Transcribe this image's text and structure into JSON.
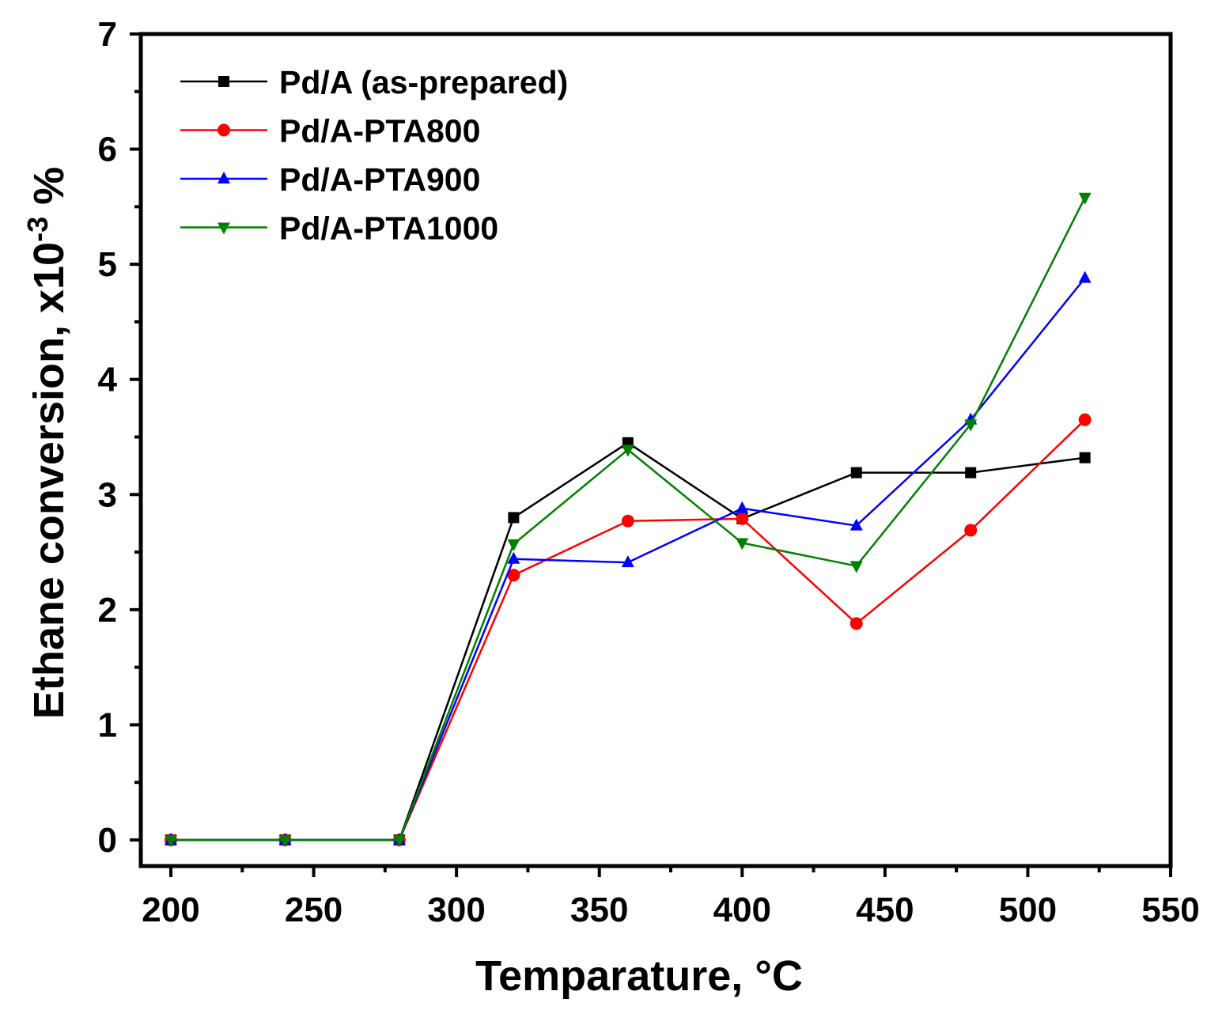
{
  "chart_data": {
    "type": "line",
    "title": "",
    "xlabel": "Temparature, °C",
    "ylabel_main": "Ethane conversion, x10",
    "ylabel_sup": "-3",
    "ylabel_unit": " %",
    "xlim": [
      190,
      550
    ],
    "ylim": [
      -0.23,
      7
    ],
    "xticks": [
      200,
      250,
      300,
      350,
      400,
      450,
      500,
      550
    ],
    "yticks": [
      0,
      1,
      2,
      3,
      4,
      5,
      6,
      7
    ],
    "grid": false,
    "legend_position": "top-left",
    "x": [
      200,
      240,
      280,
      320,
      360,
      400,
      440,
      480,
      520
    ],
    "series": [
      {
        "name": "Pd/A (as-prepared)",
        "color": "#000000",
        "marker": "square",
        "values": [
          0,
          0,
          0,
          2.8,
          3.45,
          2.79,
          3.19,
          3.19,
          3.32
        ]
      },
      {
        "name": "Pd/A-PTA800",
        "color": "#ff0000",
        "marker": "circle",
        "values": [
          0,
          0,
          0,
          2.3,
          2.77,
          2.79,
          1.88,
          2.69,
          3.65
        ]
      },
      {
        "name": "Pd/A-PTA900",
        "color": "#0000ff",
        "marker": "triangle-up",
        "values": [
          0,
          0,
          0,
          2.44,
          2.41,
          2.88,
          2.73,
          3.65,
          4.88
        ]
      },
      {
        "name": "Pd/A-PTA1000",
        "color": "#008000",
        "marker": "triangle-down",
        "values": [
          0,
          0,
          0,
          2.57,
          3.39,
          2.58,
          2.38,
          3.61,
          5.58
        ]
      }
    ]
  }
}
